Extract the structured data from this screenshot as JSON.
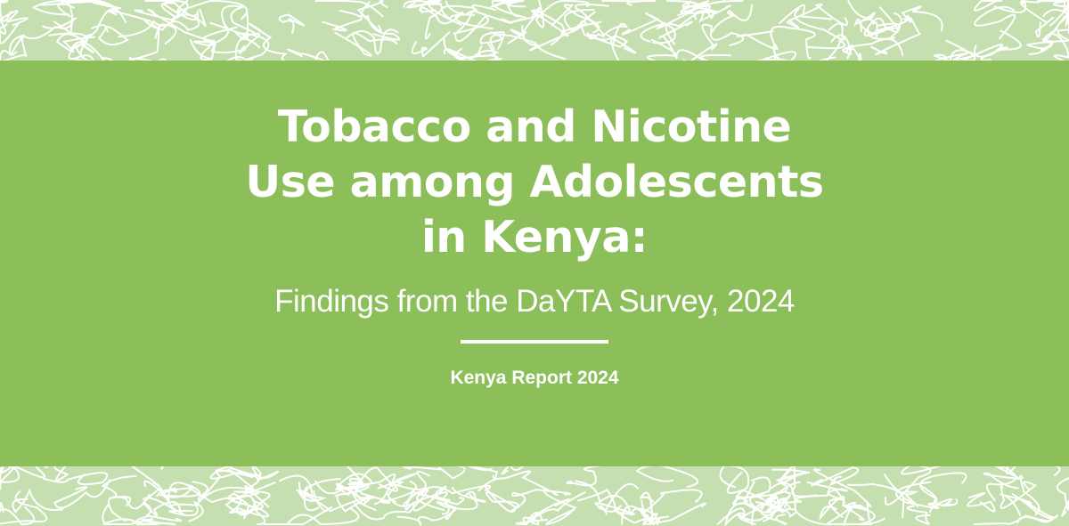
{
  "cover": {
    "title_lines": [
      "Tobacco and Nicotine",
      "Use among Adolescents",
      "in Kenya:"
    ],
    "subtitle": "Findings from the DaYTA Survey, 2024",
    "report_label": "Kenya Report 2024"
  },
  "colors": {
    "band": "#8cbf5a",
    "pattern_background": "#c6dfb0",
    "pattern_lines": "#ffffff",
    "text": "#ffffff"
  },
  "decoration": "white-vine-line-pattern"
}
